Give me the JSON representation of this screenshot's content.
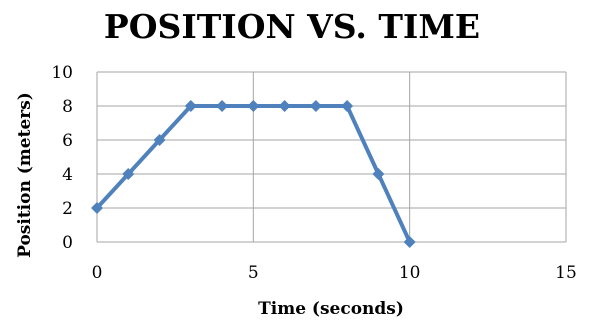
{
  "chart_data": {
    "type": "line",
    "title": "POSITION VS. TIME",
    "xlabel": "Time (seconds)",
    "ylabel": "Position (meters)",
    "xlim": [
      0,
      15
    ],
    "ylim": [
      0,
      10
    ],
    "xticks": [
      0,
      5,
      10,
      15
    ],
    "yticks": [
      0,
      2,
      4,
      6,
      8,
      10
    ],
    "grid": true,
    "series": [
      {
        "x": [
          0,
          1,
          2,
          3,
          4,
          5,
          6,
          7,
          8,
          9,
          10
        ],
        "y": [
          2,
          4,
          6,
          8,
          8,
          8,
          8,
          8,
          8,
          4,
          0
        ]
      }
    ],
    "colors": {
      "line": "#4F81BD",
      "grid": "#A6A6A6"
    },
    "marker": "diamond"
  }
}
